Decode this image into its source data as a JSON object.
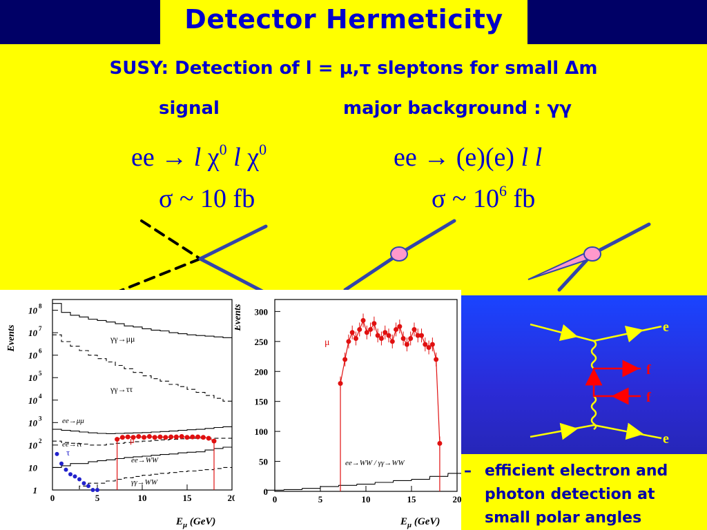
{
  "title": "Detector Hermeticity",
  "subtitle": "SUSY: Detection of l = μ,τ sleptons for small Δm",
  "signal_label": "signal",
  "background_label": "major background : γγ",
  "signal_process": {
    "pre": "ee → ",
    "l1": "l",
    "chi1": " χ",
    "sup1": "0",
    "l2": " l",
    "chi2": " χ",
    "sup2": "0"
  },
  "background_process": {
    "pre": "ee → (e)(e) ",
    "l1": "l",
    "l2": " l"
  },
  "signal_xsec": "σ ~ 10 fb",
  "background_xsec": {
    "pre": "σ ~ 10",
    "sup": "6",
    "post": " fb"
  },
  "plot_left": {
    "ylabel": "Events",
    "xlabel": "E",
    "xlabel_sub": "μ",
    "xlabel_unit": " (GeV)",
    "x_ticks": [
      "0",
      "5",
      "10",
      "15",
      "20"
    ],
    "y_tick_bases": [
      "1",
      "10",
      "10",
      "10",
      "10",
      "10",
      "10",
      "10",
      "10"
    ],
    "y_tick_exps": [
      "",
      "",
      "2",
      "3",
      "4",
      "5",
      "6",
      "7",
      "8"
    ],
    "labels": {
      "gg_mumu": "γγ→μμ",
      "gg_tautau": "γγ→ττ",
      "ee_mumu": "ee→μμ",
      "ee_tautau": "ee→ττ",
      "ee_ww": "ee→WW",
      "gg_ww": "γγ→WW",
      "mu": "μ",
      "tau": "τ"
    }
  },
  "plot_right": {
    "ylabel": "Events",
    "xlabel": "E",
    "xlabel_sub": "μ",
    "xlabel_unit": " (GeV)",
    "x_ticks": [
      "0",
      "5",
      "10",
      "15",
      "20"
    ],
    "y_ticks": [
      "0",
      "50",
      "100",
      "150",
      "200",
      "250",
      "300"
    ],
    "labels": {
      "mu": "μ",
      "bkg": "ee→WW / γγ→WW"
    }
  },
  "chart_data": [
    {
      "type": "line",
      "title": "",
      "xlabel": "Eμ (GeV)",
      "ylabel": "Events",
      "xlim": [
        0,
        20
      ],
      "ylim": [
        1,
        300000000
      ],
      "yscale": "log",
      "series": [
        {
          "name": "γγ→μμ",
          "x": [
            1,
            2,
            3,
            4,
            5,
            6,
            7,
            8,
            9,
            10,
            11,
            12,
            13,
            14,
            15,
            16,
            17,
            18,
            19,
            20
          ],
          "values": [
            200000000,
            80000000,
            60000000,
            50000000,
            40000000,
            35000000,
            30000000,
            25000000,
            20000000,
            18000000,
            15000000,
            13000000,
            12000000,
            10000000,
            9000000,
            8000000,
            7500000,
            7000000,
            6500000,
            6000000
          ]
        },
        {
          "name": "γγ→ττ",
          "x": [
            1,
            2,
            3,
            4,
            5,
            6,
            7,
            8,
            9,
            10,
            11,
            12,
            13,
            14,
            15,
            16,
            17,
            18,
            19,
            20
          ],
          "values": [
            8000000,
            4000000,
            2500000,
            1600000,
            1000000,
            700000,
            500000,
            350000,
            250000,
            170000,
            120000,
            90000,
            70000,
            50000,
            40000,
            30000,
            22000,
            16000,
            12000,
            9000
          ]
        },
        {
          "name": "ee→μμ",
          "x": [
            1,
            2,
            3,
            4,
            5,
            6,
            7,
            8,
            9,
            10,
            11,
            12,
            13,
            14,
            15,
            16,
            17,
            18,
            19,
            20
          ],
          "values": [
            500,
            450,
            420,
            380,
            350,
            330,
            320,
            330,
            340,
            350,
            360,
            380,
            400,
            420,
            450,
            480,
            500,
            550,
            600,
            650
          ]
        },
        {
          "name": "ee→ττ",
          "x": [
            1,
            2,
            3,
            4,
            5,
            6,
            7,
            8,
            9,
            10,
            11,
            12,
            13,
            14,
            15,
            16,
            17,
            18,
            19,
            20
          ],
          "values": [
            150,
            130,
            120,
            110,
            100,
            100,
            110,
            120,
            130,
            140,
            150,
            160,
            170,
            180,
            190,
            200,
            200,
            200,
            200,
            200
          ]
        },
        {
          "name": "ee→WW",
          "x": [
            1,
            2,
            3,
            4,
            5,
            6,
            7,
            8,
            9,
            10,
            11,
            12,
            13,
            14,
            15,
            16,
            17,
            18,
            19,
            20
          ],
          "values": [
            10,
            12,
            15,
            15,
            18,
            20,
            22,
            25,
            28,
            30,
            32,
            35,
            38,
            40,
            45,
            48,
            50,
            60,
            70,
            80
          ]
        },
        {
          "name": "γγ→WW",
          "x": [
            1,
            2,
            3,
            4,
            5,
            6,
            7,
            8,
            9,
            10,
            11,
            12,
            13,
            14,
            15,
            16,
            17,
            18,
            19,
            20
          ],
          "values": [
            1,
            1,
            1,
            1.5,
            2,
            2,
            2.5,
            3,
            3.5,
            4,
            4.5,
            5,
            5.5,
            6,
            6.5,
            7,
            7.5,
            8,
            9,
            10
          ]
        },
        {
          "name": "μ",
          "x": [
            7.2,
            7.8,
            8.4,
            9,
            9.6,
            10.2,
            10.8,
            11.4,
            12,
            12.6,
            13.2,
            13.8,
            14.4,
            15,
            15.6,
            16.2,
            16.8,
            17.4,
            18
          ],
          "values": [
            180,
            220,
            230,
            220,
            240,
            220,
            240,
            220,
            230,
            220,
            230,
            230,
            240,
            220,
            230,
            230,
            220,
            200,
            150
          ]
        },
        {
          "name": "τ",
          "x": [
            0.5,
            1,
            1.5,
            2,
            2.5,
            3,
            3.5,
            4,
            4.5,
            5
          ],
          "values": [
            40,
            15,
            8,
            5,
            4,
            3,
            2,
            1.5,
            1,
            1
          ]
        }
      ]
    },
    {
      "type": "line",
      "title": "",
      "xlabel": "Eμ (GeV)",
      "ylabel": "Events",
      "xlim": [
        0,
        20
      ],
      "ylim": [
        0,
        320
      ],
      "series": [
        {
          "name": "μ",
          "x": [
            7.2,
            7.7,
            8.1,
            8.5,
            8.9,
            9.3,
            9.7,
            10.1,
            10.5,
            10.9,
            11.3,
            11.7,
            12.1,
            12.5,
            12.9,
            13.3,
            13.7,
            14.1,
            14.5,
            14.9,
            15.3,
            15.7,
            16.1,
            16.5,
            16.9,
            17.3,
            17.7,
            18.1
          ],
          "values": [
            180,
            220,
            250,
            265,
            255,
            270,
            285,
            265,
            270,
            280,
            260,
            255,
            265,
            260,
            250,
            270,
            275,
            255,
            245,
            255,
            270,
            260,
            260,
            245,
            240,
            245,
            220,
            80
          ]
        },
        {
          "name": "ee→WW / γγ→WW",
          "x": [
            0,
            2,
            4,
            6,
            8,
            10,
            12,
            14,
            16,
            18,
            20
          ],
          "values": [
            2,
            3,
            5,
            8,
            10,
            12,
            15,
            18,
            20,
            25,
            30
          ]
        }
      ]
    }
  ],
  "feynman": {
    "e_top": "e",
    "f1": "f",
    "f2": "f",
    "e_bottom": "e"
  },
  "bullet": {
    "dash": "–",
    "text": "efficient electron and photon detection at small polar angles"
  }
}
